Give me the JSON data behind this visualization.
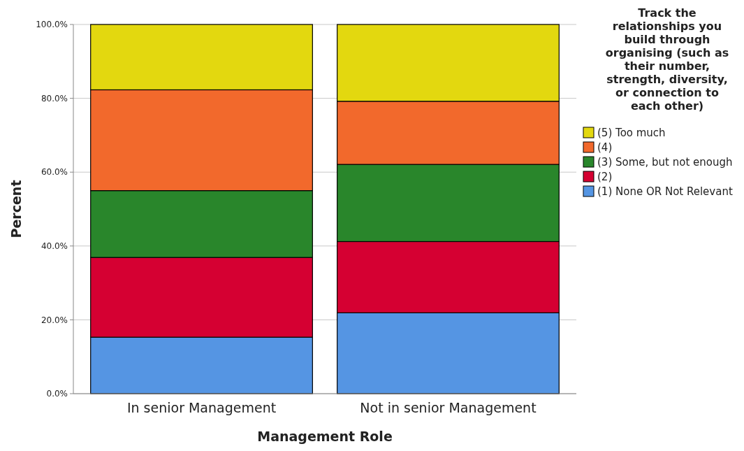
{
  "chart_data": {
    "type": "bar",
    "stacked": true,
    "xlabel": "Management Role",
    "ylabel": "Percent",
    "legend_title": "Track the relationships you build through organising (such as their number, strength, diversity, or connection to each other)",
    "categories": [
      "In senior Management",
      "Not in senior Management"
    ],
    "series": [
      {
        "name": "(1) None OR Not Relevant",
        "color": "#5595e3",
        "values": [
          15.3,
          21.9
        ]
      },
      {
        "name": "(2)",
        "color": "#d50032",
        "values": [
          21.6,
          19.3
        ]
      },
      {
        "name": "(3) Some, but not enough",
        "color": "#29862b",
        "values": [
          18.1,
          20.9
        ]
      },
      {
        "name": "(4)",
        "color": "#f2692c",
        "values": [
          27.3,
          17.1
        ]
      },
      {
        "name": "(5) Too much",
        "color": "#e3d80f",
        "values": [
          17.7,
          20.8
        ]
      }
    ],
    "ylim": [
      0,
      100
    ],
    "yticks": [
      {
        "value": 0,
        "label": "0.0%"
      },
      {
        "value": 20,
        "label": "20.0%"
      },
      {
        "value": 40,
        "label": "40.0%"
      },
      {
        "value": 60,
        "label": "60.0%"
      },
      {
        "value": 80,
        "label": "80.0%"
      },
      {
        "value": 100,
        "label": "100.0%"
      }
    ],
    "grid": "y",
    "legend": "right"
  }
}
